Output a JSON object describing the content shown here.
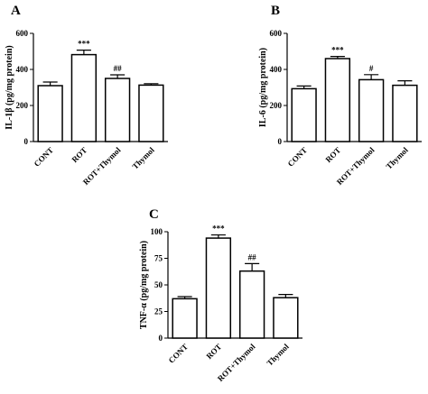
{
  "chart_data": [
    {
      "type": "bar",
      "label": "A",
      "ylabel": "IL-1β (pg/mg protein)",
      "categories": [
        "CONT",
        "ROT",
        "ROT+Thymol",
        "Thymol"
      ],
      "values": [
        310,
        482,
        350,
        313
      ],
      "errors": [
        20,
        25,
        20,
        8
      ],
      "annotations": [
        null,
        "***",
        "##",
        null
      ],
      "color": "#ffffff",
      "ylim": [
        0,
        600
      ],
      "yticks": [
        0,
        200,
        400,
        600
      ]
    },
    {
      "type": "bar",
      "label": "B",
      "ylabel": "IL-6 (pg/mg protein)",
      "categories": [
        "CONT",
        "ROT",
        "ROT+Thymol",
        "Thymol"
      ],
      "values": [
        293,
        460,
        343,
        312
      ],
      "errors": [
        15,
        12,
        28,
        25
      ],
      "annotations": [
        null,
        "***",
        "#",
        null
      ],
      "color": "#ffffff",
      "ylim": [
        0,
        600
      ],
      "yticks": [
        0,
        200,
        400,
        600
      ]
    },
    {
      "type": "bar",
      "label": "C",
      "ylabel": "TNF-α (pg/mg protein)",
      "categories": [
        "CONT",
        "ROT",
        "ROT+Thymol",
        "Thymol"
      ],
      "values": [
        37,
        94,
        63,
        38
      ],
      "errors": [
        2,
        3,
        7,
        3
      ],
      "annotations": [
        null,
        "***",
        "##",
        null
      ],
      "color": "#ffffff",
      "ylim": [
        0,
        100
      ],
      "yticks": [
        0,
        25,
        50,
        75,
        100
      ]
    }
  ]
}
